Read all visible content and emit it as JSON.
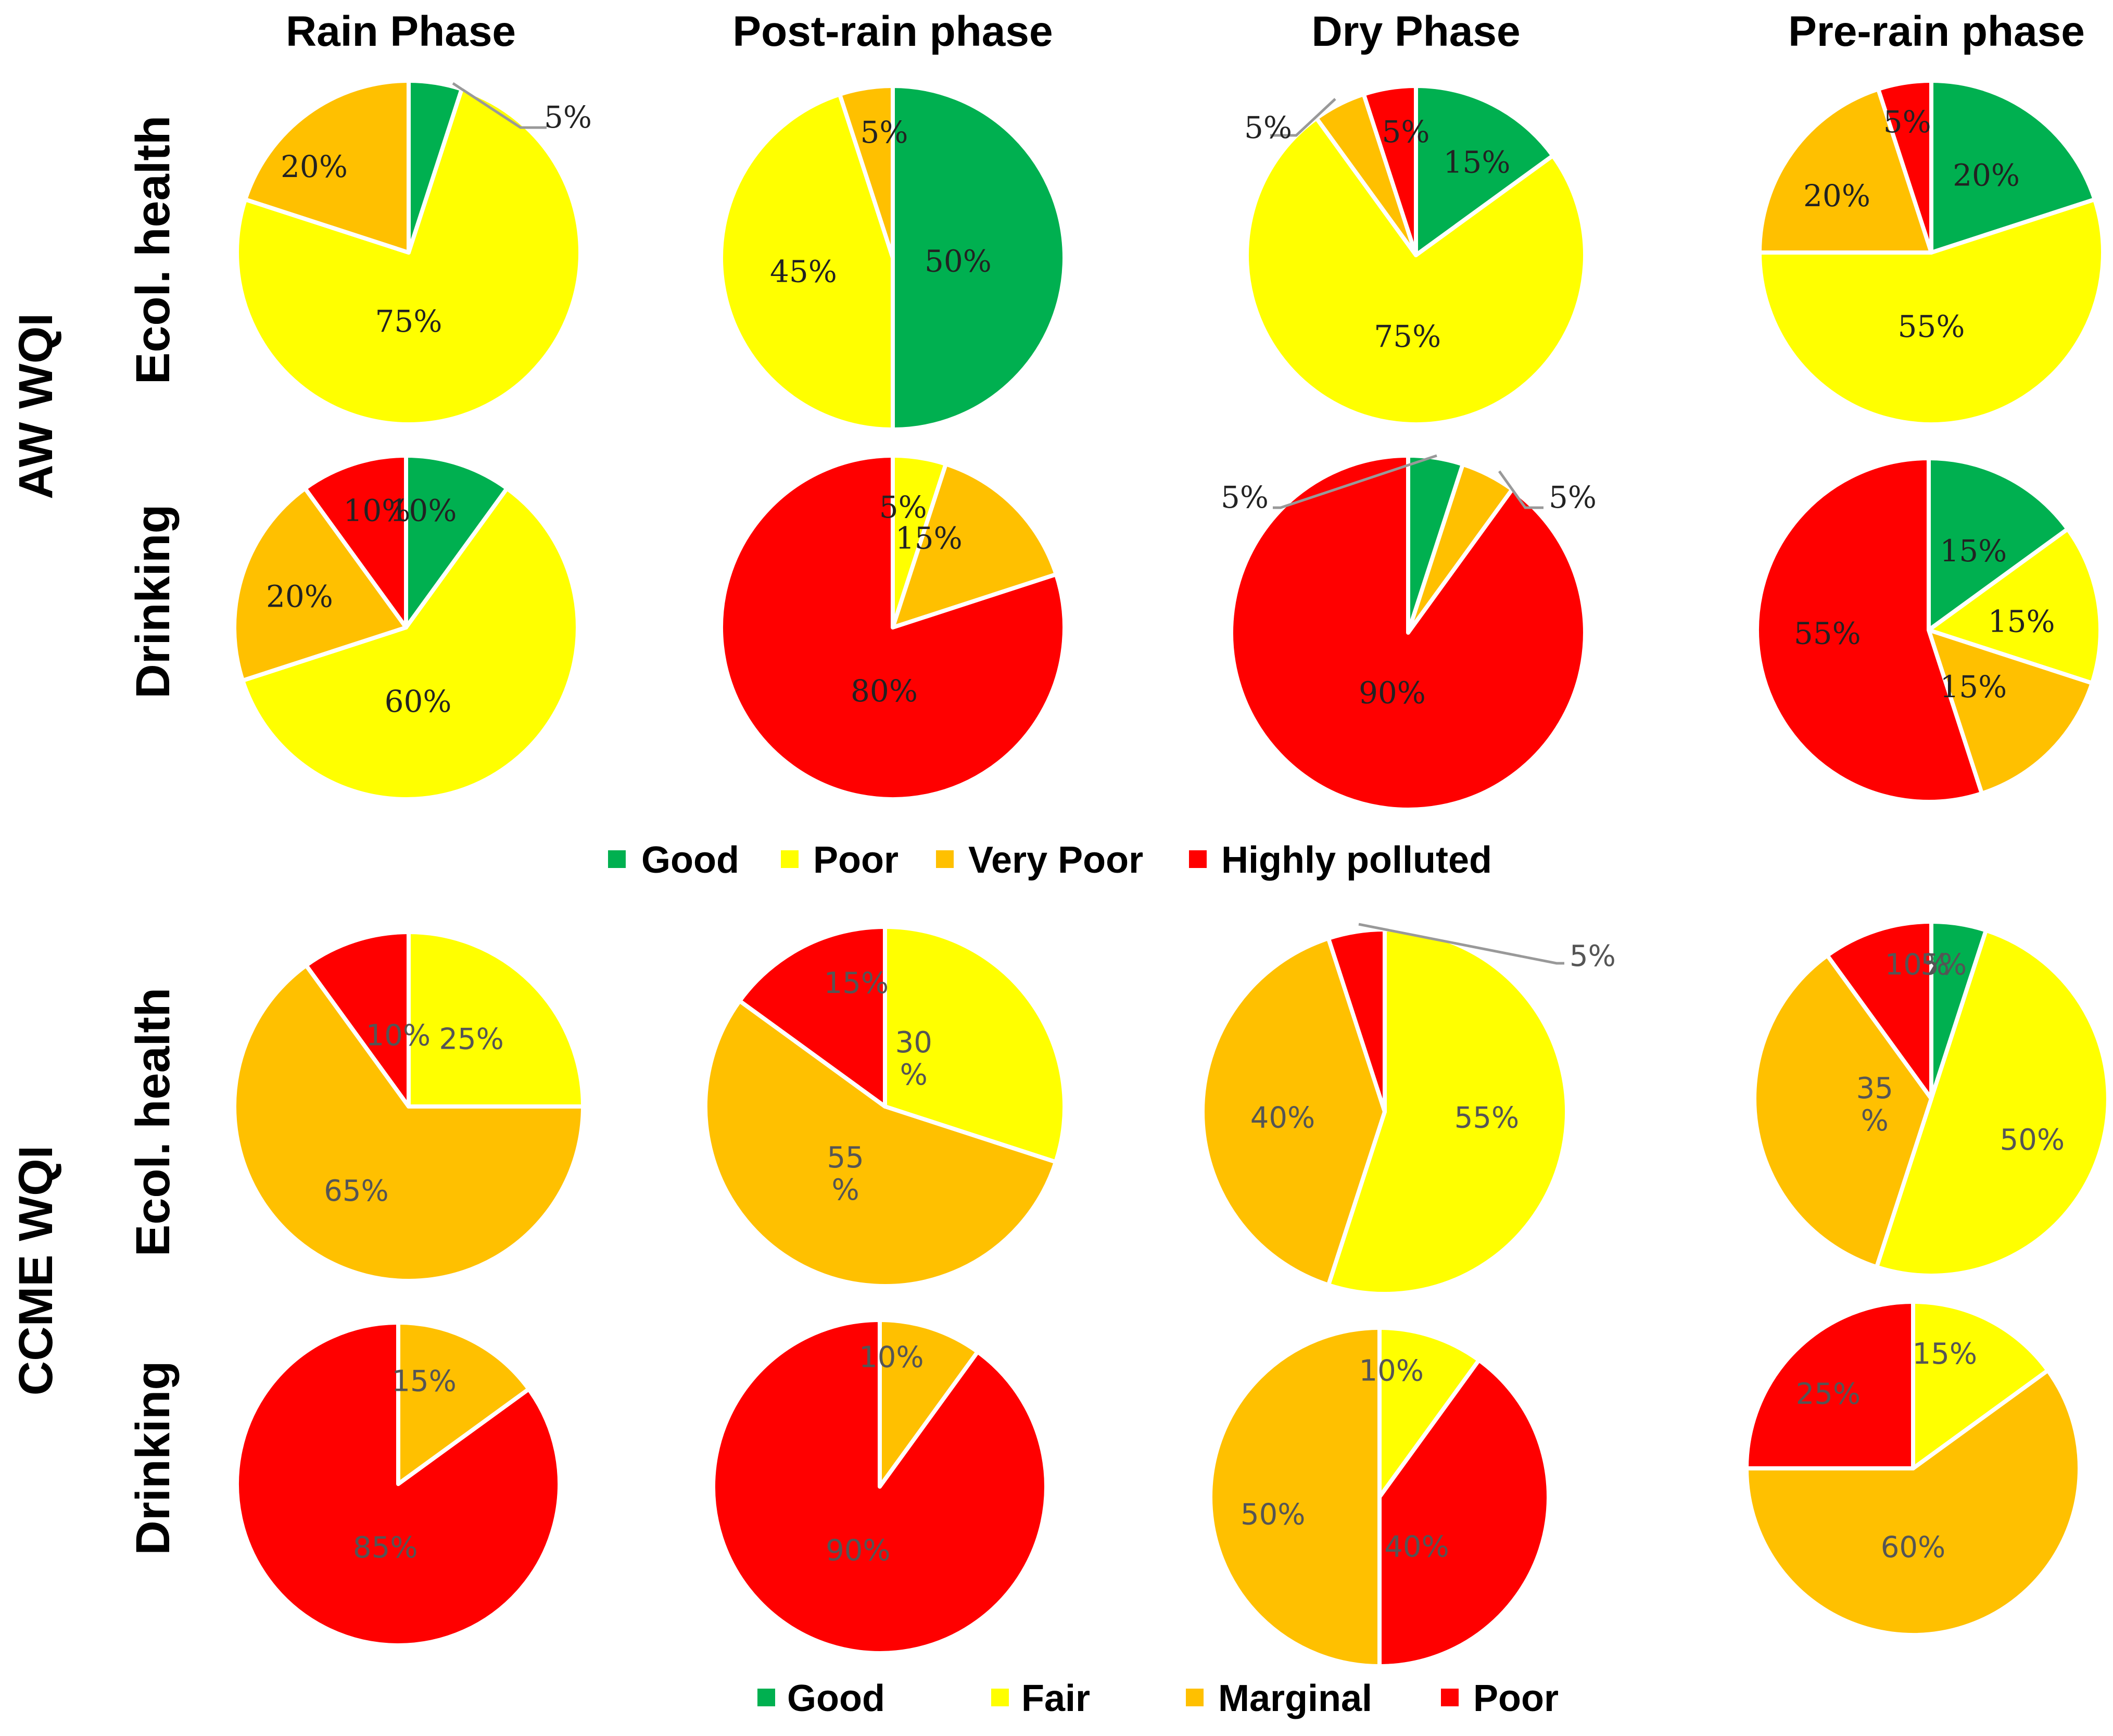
{
  "colors": {
    "Good": "#00b050",
    "Poor": "#ffff00",
    "Very Poor": "#ffc000",
    "Highly polluted": "#ff0000",
    "Fair": "#ffff00",
    "Marginal": "#ffc000",
    "CCME Poor": "#ff0000"
  },
  "headers": [
    "Rain Phase",
    "Post-rain phase",
    "Dry Phase",
    "Pre-rain phase"
  ],
  "groups": {
    "aw": "AW WQI",
    "ccme": "CCME WQI"
  },
  "row_labels": {
    "aw_ecol": "Ecol. health",
    "aw_drink": "Drinking",
    "ccme_ecol": "Ecol. health",
    "ccme_drink": "Drinking"
  },
  "legend_aw": [
    "Good",
    "Poor",
    "Very Poor",
    "Highly polluted"
  ],
  "legend_ccme": [
    "Good",
    "Fair",
    "Marginal",
    "Poor"
  ],
  "chart_data": [
    {
      "type": "pie",
      "group": "AW WQI",
      "row": "Ecol. health",
      "phase": "Rain Phase",
      "slices": [
        {
          "label": "Good",
          "value": 5,
          "text": "5%"
        },
        {
          "label": "Poor",
          "value": 75,
          "text": "75%"
        },
        {
          "label": "Very Poor",
          "value": 20,
          "text": "20%"
        }
      ]
    },
    {
      "type": "pie",
      "group": "AW WQI",
      "row": "Ecol. health",
      "phase": "Post-rain phase",
      "slices": [
        {
          "label": "Good",
          "value": 50,
          "text": "50%"
        },
        {
          "label": "Poor",
          "value": 45,
          "text": "45%"
        },
        {
          "label": "Very Poor",
          "value": 5,
          "text": "5%"
        }
      ]
    },
    {
      "type": "pie",
      "group": "AW WQI",
      "row": "Ecol. health",
      "phase": "Dry Phase",
      "slices": [
        {
          "label": "Good",
          "value": 15,
          "text": "15%"
        },
        {
          "label": "Poor",
          "value": 75,
          "text": "75%"
        },
        {
          "label": "Very Poor",
          "value": 5,
          "text": "5%"
        },
        {
          "label": "Highly polluted",
          "value": 5,
          "text": "5%"
        }
      ]
    },
    {
      "type": "pie",
      "group": "AW WQI",
      "row": "Ecol. health",
      "phase": "Pre-rain phase",
      "slices": [
        {
          "label": "Good",
          "value": 20,
          "text": "20%"
        },
        {
          "label": "Poor",
          "value": 55,
          "text": "55%"
        },
        {
          "label": "Very Poor",
          "value": 20,
          "text": "20%"
        },
        {
          "label": "Highly polluted",
          "value": 5,
          "text": "5%"
        }
      ]
    },
    {
      "type": "pie",
      "group": "AW WQI",
      "row": "Drinking",
      "phase": "Rain Phase",
      "slices": [
        {
          "label": "Good",
          "value": 10,
          "text": "10%"
        },
        {
          "label": "Poor",
          "value": 60,
          "text": "60%"
        },
        {
          "label": "Very Poor",
          "value": 20,
          "text": "20%"
        },
        {
          "label": "Highly polluted",
          "value": 10,
          "text": "10%"
        }
      ]
    },
    {
      "type": "pie",
      "group": "AW WQI",
      "row": "Drinking",
      "phase": "Post-rain phase",
      "slices": [
        {
          "label": "Poor",
          "value": 5,
          "text": "5%"
        },
        {
          "label": "Very Poor",
          "value": 15,
          "text": "15%"
        },
        {
          "label": "Highly polluted",
          "value": 80,
          "text": "80%"
        }
      ]
    },
    {
      "type": "pie",
      "group": "AW WQI",
      "row": "Drinking",
      "phase": "Dry Phase",
      "slices": [
        {
          "label": "Good",
          "value": 5,
          "text": "5%"
        },
        {
          "label": "Very Poor",
          "value": 5,
          "text": "5%"
        },
        {
          "label": "Highly polluted",
          "value": 90,
          "text": "90%"
        }
      ]
    },
    {
      "type": "pie",
      "group": "AW WQI",
      "row": "Drinking",
      "phase": "Pre-rain phase",
      "slices": [
        {
          "label": "Good",
          "value": 15,
          "text": "15%"
        },
        {
          "label": "Poor",
          "value": 15,
          "text": "15%"
        },
        {
          "label": "Very Poor",
          "value": 15,
          "text": "15%"
        },
        {
          "label": "Highly polluted",
          "value": 55,
          "text": "55%"
        }
      ]
    },
    {
      "type": "pie",
      "group": "CCME WQI",
      "row": "Ecol. health",
      "phase": "Rain Phase",
      "slices": [
        {
          "label": "Fair",
          "value": 25,
          "text": "25%"
        },
        {
          "label": "Marginal",
          "value": 65,
          "text": "65%"
        },
        {
          "label": "Poor",
          "value": 10,
          "text": "10%"
        }
      ]
    },
    {
      "type": "pie",
      "group": "CCME WQI",
      "row": "Ecol. health",
      "phase": "Post-rain phase",
      "slices": [
        {
          "label": "Fair",
          "value": 30,
          "text": "30 %"
        },
        {
          "label": "Marginal",
          "value": 55,
          "text": "55 %"
        },
        {
          "label": "Poor",
          "value": 15,
          "text": "15%"
        }
      ]
    },
    {
      "type": "pie",
      "group": "CCME WQI",
      "row": "Ecol. health",
      "phase": "Dry Phase",
      "slices": [
        {
          "label": "Fair",
          "value": 55,
          "text": "55%"
        },
        {
          "label": "Marginal",
          "value": 40,
          "text": "40%"
        },
        {
          "label": "Poor",
          "value": 5,
          "text": "5%"
        }
      ]
    },
    {
      "type": "pie",
      "group": "CCME WQI",
      "row": "Ecol. health",
      "phase": "Pre-rain phase",
      "slices": [
        {
          "label": "Good",
          "value": 5,
          "text": "5%"
        },
        {
          "label": "Fair",
          "value": 50,
          "text": "50%"
        },
        {
          "label": "Marginal",
          "value": 35,
          "text": "35 %"
        },
        {
          "label": "Poor",
          "value": 10,
          "text": "10%"
        }
      ]
    },
    {
      "type": "pie",
      "group": "CCME WQI",
      "row": "Drinking",
      "phase": "Rain Phase",
      "slices": [
        {
          "label": "Marginal",
          "value": 15,
          "text": "15%"
        },
        {
          "label": "Poor",
          "value": 85,
          "text": "85%"
        }
      ]
    },
    {
      "type": "pie",
      "group": "CCME WQI",
      "row": "Drinking",
      "phase": "Post-rain phase",
      "slices": [
        {
          "label": "Marginal",
          "value": 10,
          "text": "10%"
        },
        {
          "label": "Poor",
          "value": 90,
          "text": "90%"
        }
      ]
    },
    {
      "type": "pie",
      "group": "CCME WQI",
      "row": "Drinking",
      "phase": "Dry Phase",
      "slices": [
        {
          "label": "Fair",
          "value": 10,
          "text": "10%"
        },
        {
          "label": "Poor",
          "value": 40,
          "text": "40%"
        },
        {
          "label": "Marginal",
          "value": 50,
          "text": "50%"
        }
      ]
    },
    {
      "type": "pie",
      "group": "CCME WQI",
      "row": "Drinking",
      "phase": "Pre-rain phase",
      "slices": [
        {
          "label": "Fair",
          "value": 15,
          "text": "15%"
        },
        {
          "label": "Marginal",
          "value": 60,
          "text": "60%"
        },
        {
          "label": "Poor",
          "value": 25,
          "text": "25%"
        }
      ]
    }
  ]
}
